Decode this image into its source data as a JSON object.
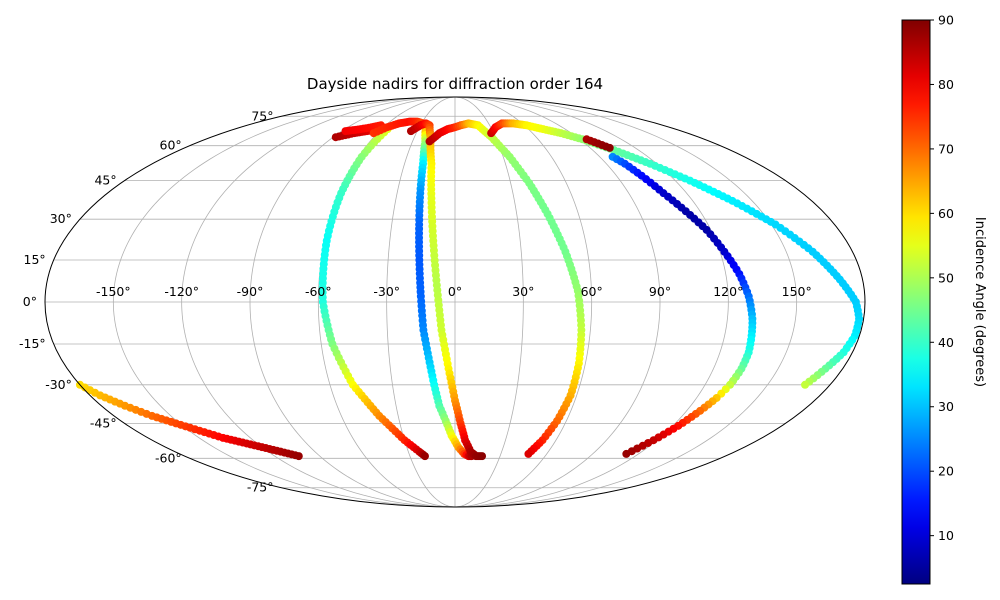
{
  "chart_data": {
    "type": "scatter",
    "projection": "mollweide",
    "title": "Dayside nadirs for diffraction order 164",
    "x_ticks_deg": [
      -150,
      -120,
      -90,
      -60,
      -30,
      0,
      30,
      60,
      90,
      120,
      150
    ],
    "x_tick_labels": [
      "-150°",
      "-120°",
      "-90°",
      "-60°",
      "-30°",
      "0°",
      "30°",
      "60°",
      "90°",
      "120°",
      "150°"
    ],
    "y_ticks_deg": [
      -75,
      -60,
      -45,
      -30,
      -15,
      0,
      15,
      30,
      45,
      60,
      75
    ],
    "y_tick_labels": [
      "-75°",
      "-60°",
      "-45°",
      "-30°",
      "-15°",
      "0°",
      "15°",
      "30°",
      "45°",
      "60°",
      "75°"
    ],
    "grid": true,
    "colorbar": {
      "label": "Incidence Angle (degrees)",
      "colormap": "jet",
      "range": [
        2.5,
        90
      ],
      "ticks": [
        10,
        20,
        30,
        40,
        50,
        60,
        70,
        80,
        90
      ]
    },
    "tracks": [
      {
        "lon": [
          -88,
          -78,
          -70,
          -62
        ],
        "lat": [
          64,
          66,
          67,
          68
        ],
        "inc": [
          86,
          84,
          82,
          80
        ]
      },
      {
        "lon": [
          -87,
          -77,
          -70,
          -64
        ],
        "lat": [
          67,
          68,
          69,
          70
        ],
        "inc": [
          80,
          79,
          78,
          77
        ]
      },
      {
        "lon": [
          -55,
          -58,
          -59,
          -59,
          -58,
          -55,
          -49,
          -40,
          -30,
          -23,
          -20
        ],
        "lat": [
          68,
          55,
          40,
          22,
          0,
          -15,
          -30,
          -42,
          -52,
          -57,
          -59
        ],
        "inc": [
          55,
          47,
          40,
          36,
          38,
          46,
          57,
          67,
          76,
          83,
          88
        ]
      },
      {
        "lon": [
          -63,
          -57,
          -50,
          -42,
          -35,
          -28,
          -24,
          -21,
          -19,
          -18,
          -17,
          -16,
          -15,
          -14,
          -12,
          -10,
          -8,
          -5,
          -2,
          2,
          6,
          9,
          11,
          12
        ],
        "lat": [
          66,
          69,
          71,
          72,
          72,
          71,
          68,
          62,
          52,
          40,
          28,
          15,
          2,
          -10,
          -20,
          -30,
          -38,
          -44,
          -50,
          -55,
          -58,
          -59,
          -59,
          -58
        ],
        "inc": [
          75,
          76,
          77,
          78,
          76,
          72,
          65,
          50,
          34,
          26,
          22,
          21,
          22,
          25,
          30,
          36,
          42,
          48,
          56,
          65,
          74,
          82,
          86,
          88
        ]
      },
      {
        "lon": [
          -35,
          -30,
          -26,
          -22,
          -18,
          -14,
          -12,
          -10,
          -8,
          -6,
          -3,
          0,
          3,
          6,
          10,
          14,
          18
        ],
        "lat": [
          67,
          70,
          71,
          70,
          64,
          52,
          38,
          22,
          6,
          -10,
          -24,
          -36,
          -45,
          -52,
          -57,
          -59,
          -59
        ],
        "inc": [
          86,
          82,
          78,
          74,
          65,
          58,
          55,
          53,
          51,
          53,
          58,
          66,
          74,
          81,
          86,
          88,
          89
        ]
      },
      {
        "lon": [
          -18,
          -12,
          -6,
          0,
          5,
          12,
          20,
          27,
          34,
          40,
          45,
          50,
          54,
          56,
          57,
          57,
          55,
          52,
          48
        ],
        "lat": [
          62,
          66,
          68,
          69,
          70,
          71,
          70,
          64,
          55,
          44,
          32,
          18,
          4,
          -10,
          -22,
          -34,
          -44,
          -52,
          -58
        ],
        "inc": [
          86,
          82,
          79,
          76,
          72,
          64,
          58,
          52,
          48,
          46,
          45,
          45,
          48,
          52,
          58,
          64,
          70,
          76,
          82
        ]
      },
      {
        "lon": [
          28,
          34,
          42,
          52,
          62,
          72,
          82,
          92,
          104,
          116,
          128,
          140,
          152,
          162,
          170,
          176,
          178,
          178,
          176,
          172,
          168
        ],
        "lat": [
          66,
          69,
          71,
          71,
          70,
          68,
          66,
          63,
          58,
          52,
          45,
          37,
          28,
          18,
          8,
          0,
          -6,
          -12,
          -18,
          -24,
          -30
        ],
        "inc": [
          84,
          80,
          74,
          64,
          58,
          56,
          52,
          48,
          44,
          40,
          37,
          34,
          32,
          31,
          31,
          31,
          32,
          34,
          38,
          44,
          52
        ]
      },
      {
        "lon": [
          98,
          101,
          104,
          108,
          113,
          118,
          122,
          126,
          129,
          131,
          132,
          133,
          133,
          132,
          130,
          127,
          123,
          118,
          112
        ],
        "lat": [
          55,
          52,
          47,
          40,
          33,
          26,
          18,
          10,
          2,
          -6,
          -12,
          -18,
          -24,
          -30,
          -35,
          -40,
          -46,
          -52,
          -58
        ],
        "inc": [
          25,
          20,
          14,
          9,
          6,
          6,
          9,
          15,
          23,
          30,
          34,
          38,
          44,
          52,
          62,
          70,
          78,
          84,
          88
        ]
      },
      {
        "lon": [
          95,
          99,
          103
        ],
        "lat": [
          63,
          61,
          59
        ],
        "inc": [
          86,
          88,
          89
        ]
      },
      {
        "lon": [
          -180,
          -175,
          -168,
          -160,
          -152,
          -144,
          -136,
          -128,
          -120,
          -112,
          -104
        ],
        "lat": [
          -30,
          -34,
          -38,
          -42,
          -45,
          -48,
          -51,
          -53,
          -55,
          -57,
          -59
        ],
        "inc": [
          60,
          63,
          66,
          70,
          73,
          76,
          79,
          82,
          84,
          86,
          88
        ]
      }
    ]
  }
}
